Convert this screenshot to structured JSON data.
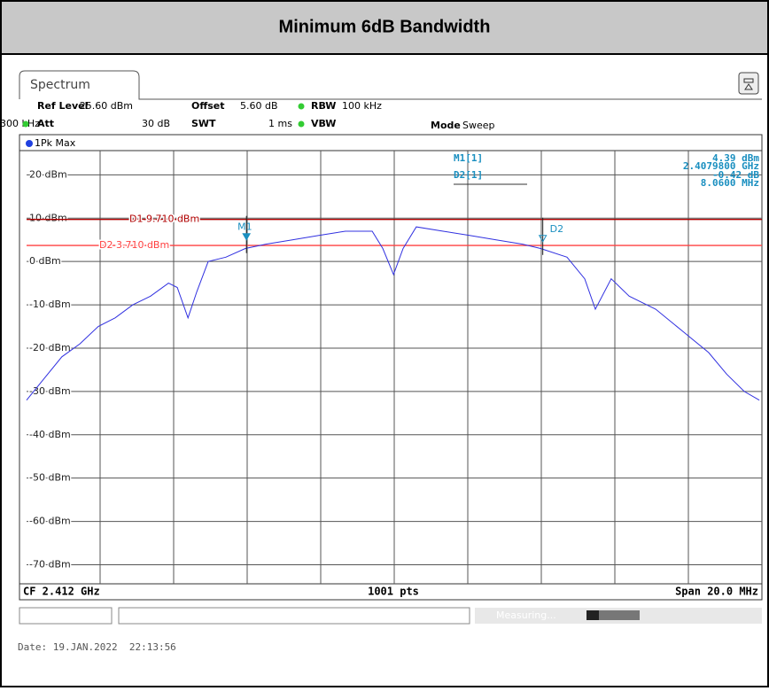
{
  "header": {
    "title": "Minimum 6dB Bandwidth"
  },
  "tab": "Spectrum",
  "settings": [
    [
      "Ref Level",
      "25.60 dBm"
    ],
    [
      "Offset",
      "5.60 dB"
    ],
    [
      "RBW",
      "100 kHz"
    ],
    [
      "Att",
      "30 dB"
    ],
    [
      "SWT",
      "1 ms"
    ],
    [
      "VBW",
      "300 kHz"
    ],
    [
      "Mode",
      "Sweep"
    ]
  ],
  "chart_data": {
    "type": "line",
    "trace_label": "1Pk Max",
    "x": [
      2402.0,
      2402.48,
      2402.96,
      2403.45,
      2403.95,
      2404.41,
      2404.89,
      2405.37,
      2405.86,
      2406.1,
      2406.39,
      2406.63,
      2406.94,
      2407.42,
      2407.95,
      2408.51,
      2409.23,
      2409.95,
      2410.67,
      2411.4,
      2411.69,
      2411.98,
      2412.24,
      2412.6,
      2413.33,
      2414.05,
      2414.77,
      2415.49,
      2415.98,
      2416.7,
      2417.18,
      2417.47,
      2417.9,
      2418.39,
      2419.11,
      2419.83,
      2420.55,
      2421.04,
      2421.52,
      2421.93
    ],
    "series": [
      {
        "name": "1Pk Max",
        "color": "#3030e0",
        "values": [
          -32,
          -27,
          -22,
          -19,
          -15,
          -13,
          -10,
          -8,
          -5,
          -6,
          -13,
          -7,
          0,
          1,
          3,
          4,
          5,
          6,
          7,
          7,
          3,
          -3,
          3,
          8,
          7,
          6,
          5,
          4,
          3,
          1,
          -4,
          -11,
          -4,
          -8,
          -11,
          -16,
          -21,
          -26,
          -30,
          -32
        ]
      }
    ],
    "xlim": [
      2402,
      2422
    ],
    "ylim": [
      -74.4,
      25.6
    ],
    "yticks": [
      {
        "value": 20,
        "label": "20 dBm"
      },
      {
        "value": 10,
        "label": "10 dBm"
      },
      {
        "value": 0,
        "label": "0 dBm"
      },
      {
        "value": -10,
        "label": "-10 dBm"
      },
      {
        "value": -20,
        "label": "-20 dBm"
      },
      {
        "value": -30,
        "label": "-30 dBm"
      },
      {
        "value": -40,
        "label": "-40 dBm"
      },
      {
        "value": -50,
        "label": "-50 dBm"
      },
      {
        "value": -60,
        "label": "-60 dBm"
      },
      {
        "value": -70,
        "label": "-70 dBm"
      }
    ],
    "grid": true,
    "display_lines": [
      {
        "label": "D1 9.710 dBm",
        "value": 9.71,
        "color": "#b00000"
      },
      {
        "label": "D2 3.710 dBm",
        "value": 3.71,
        "color": "#ff4040"
      }
    ],
    "markers": [
      {
        "name": "M1",
        "x": 2407.98,
        "y": 4.39
      },
      {
        "name": "D2",
        "x": 2416.04,
        "y": 3.97
      }
    ],
    "marker_table": [
      [
        "M1[1]",
        "4.39 dBm",
        "2.4079800 GHz"
      ],
      [
        "D2[1]",
        "-0.42 dB",
        "8.0600 MHz"
      ]
    ],
    "footer": [
      "CF 2.412 GHz",
      "1001 pts",
      "Span 20.0 MHz"
    ]
  },
  "status": "Measuring...",
  "date": "Date: 19.JAN.2022  22:13:56"
}
